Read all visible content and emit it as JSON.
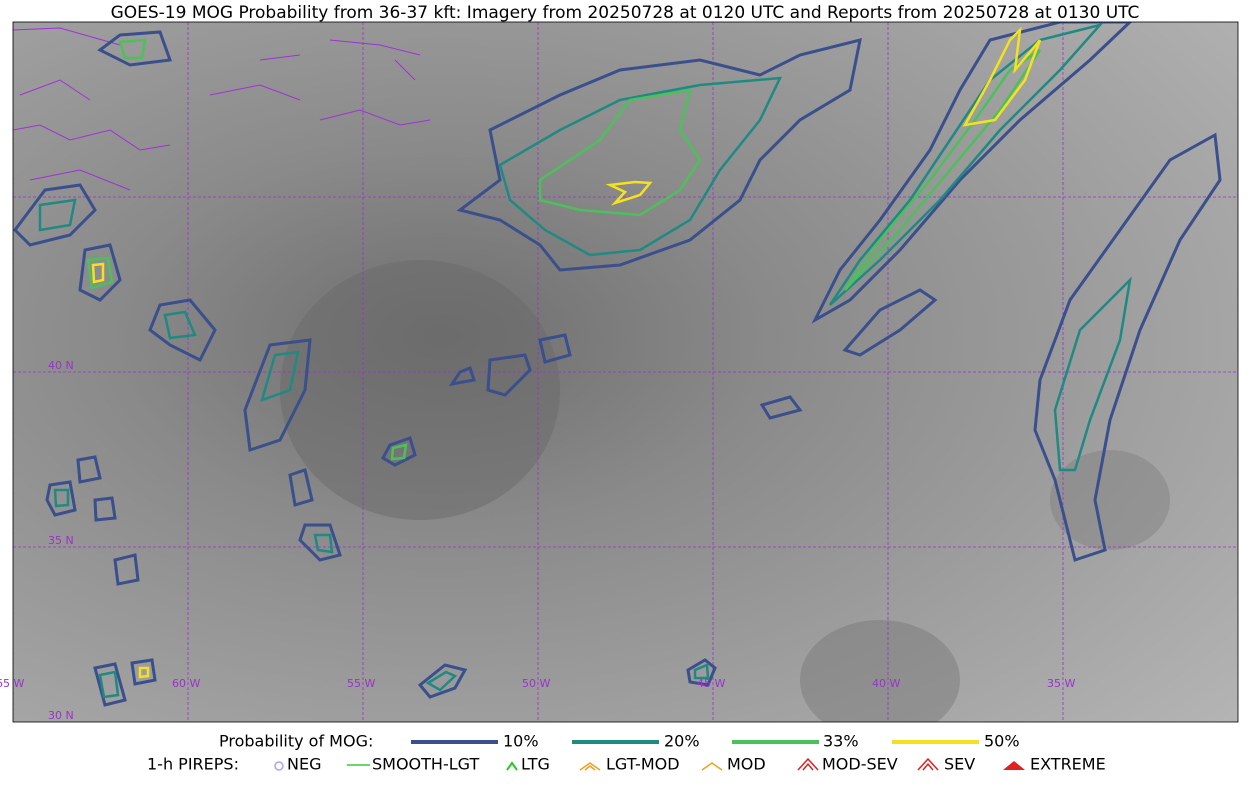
{
  "title": "GOES-19 MOG Probability from 36-37 kft: Imagery from 20250728 at 0120 UTC and Reports from 20250728 at 0130 UTC",
  "map": {
    "lon_labels": [
      "65 W",
      "60 W",
      "55 W",
      "50 W",
      "45 W",
      "40 W",
      "35 W"
    ],
    "lat_labels": [
      "40 N",
      "35 N",
      "30 N"
    ]
  },
  "legend": {
    "probability": {
      "label": "Probability of MOG:",
      "items": [
        "10%",
        "20%",
        "33%",
        "50%"
      ]
    },
    "pireps": {
      "label": "1-h PIREPS:",
      "items": [
        "NEG",
        "SMOOTH-LGT",
        "LTG",
        "LGT-MOD",
        "MOD",
        "MOD-SEV",
        "SEV",
        "EXTREME"
      ]
    }
  }
}
